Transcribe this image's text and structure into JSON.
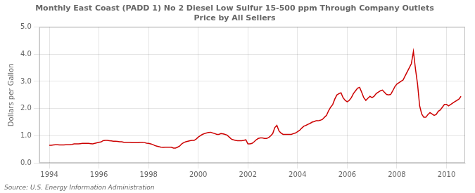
{
  "chart_data": {
    "type": "line",
    "title": "Monthly East Coast (PADD 1) No 2 Diesel Low Sulfur 15-500 ppm Through Company Outlets\nPrice by All Sellers",
    "ylabel": "Dollars per Gallon",
    "annotations": [
      "Source: U.S. Energy Information Administration"
    ],
    "color": "#cc0000",
    "grid": true,
    "xlim": [
      1993.6,
      2010.75
    ],
    "ylim": [
      0.0,
      5.0
    ],
    "xticks": [
      1994,
      1996,
      1998,
      2000,
      2002,
      2004,
      2006,
      2008,
      2010
    ],
    "yticks": [
      {
        "value": 0.0,
        "label": "0.0"
      },
      {
        "value": 1.0,
        "label": "1.0"
      },
      {
        "value": 2.0,
        "label": "2.0"
      },
      {
        "value": 3.0,
        "label": "3.0"
      },
      {
        "value": 4.0,
        "label": "4.0"
      },
      {
        "value": 5.0,
        "label": "5.0"
      }
    ],
    "x": [
      1994.0,
      1994.083,
      1994.167,
      1994.25,
      1994.333,
      1994.417,
      1994.5,
      1994.583,
      1994.667,
      1994.75,
      1994.833,
      1994.917,
      1995.0,
      1995.083,
      1995.167,
      1995.25,
      1995.333,
      1995.417,
      1995.5,
      1995.583,
      1995.667,
      1995.75,
      1995.833,
      1995.917,
      1996.0,
      1996.083,
      1996.167,
      1996.25,
      1996.333,
      1996.417,
      1996.5,
      1996.583,
      1996.667,
      1996.75,
      1996.833,
      1996.917,
      1997.0,
      1997.083,
      1997.167,
      1997.25,
      1997.333,
      1997.417,
      1997.5,
      1997.583,
      1997.667,
      1997.75,
      1997.833,
      1997.917,
      1998.0,
      1998.083,
      1998.167,
      1998.25,
      1998.333,
      1998.417,
      1998.5,
      1998.583,
      1998.667,
      1998.75,
      1998.833,
      1998.917,
      1999.0,
      1999.083,
      1999.167,
      1999.25,
      1999.333,
      1999.417,
      1999.5,
      1999.583,
      1999.667,
      1999.75,
      1999.833,
      1999.917,
      2000.0,
      2000.083,
      2000.167,
      2000.25,
      2000.333,
      2000.417,
      2000.5,
      2000.583,
      2000.667,
      2000.75,
      2000.833,
      2000.917,
      2001.0,
      2001.083,
      2001.167,
      2001.25,
      2001.333,
      2001.417,
      2001.5,
      2001.583,
      2001.667,
      2001.75,
      2001.833,
      2001.917,
      2002.0,
      2002.083,
      2002.167,
      2002.25,
      2002.333,
      2002.417,
      2002.5,
      2002.583,
      2002.667,
      2002.75,
      2002.833,
      2002.917,
      2003.0,
      2003.083,
      2003.167,
      2003.25,
      2003.333,
      2003.417,
      2003.5,
      2003.583,
      2003.667,
      2003.75,
      2003.833,
      2003.917,
      2004.0,
      2004.083,
      2004.167,
      2004.25,
      2004.333,
      2004.417,
      2004.5,
      2004.583,
      2004.667,
      2004.75,
      2004.833,
      2004.917,
      2005.0,
      2005.083,
      2005.167,
      2005.25,
      2005.333,
      2005.417,
      2005.5,
      2005.583,
      2005.667,
      2005.75,
      2005.833,
      2005.917,
      2006.0,
      2006.083,
      2006.167,
      2006.25,
      2006.333,
      2006.417,
      2006.5,
      2006.583,
      2006.667,
      2006.75,
      2006.833,
      2006.917,
      2007.0,
      2007.083,
      2007.167,
      2007.25,
      2007.333,
      2007.417,
      2007.5,
      2007.583,
      2007.667,
      2007.75,
      2007.833,
      2007.917,
      2008.0,
      2008.083,
      2008.167,
      2008.25,
      2008.333,
      2008.417,
      2008.5,
      2008.583,
      2008.667,
      2008.75,
      2008.833,
      2008.917,
      2009.0,
      2009.083,
      2009.167,
      2009.25,
      2009.333,
      2009.417,
      2009.5,
      2009.583,
      2009.667,
      2009.75,
      2009.833,
      2009.917,
      2010.0,
      2010.083,
      2010.167,
      2010.25,
      2010.333,
      2010.417,
      2010.5,
      2010.583
    ],
    "values": [
      0.65,
      0.65,
      0.66,
      0.67,
      0.67,
      0.66,
      0.66,
      0.66,
      0.67,
      0.67,
      0.67,
      0.68,
      0.7,
      0.7,
      0.7,
      0.71,
      0.72,
      0.72,
      0.72,
      0.72,
      0.71,
      0.7,
      0.72,
      0.74,
      0.76,
      0.77,
      0.82,
      0.83,
      0.83,
      0.82,
      0.81,
      0.8,
      0.8,
      0.79,
      0.78,
      0.78,
      0.76,
      0.76,
      0.76,
      0.76,
      0.75,
      0.75,
      0.75,
      0.75,
      0.76,
      0.76,
      0.75,
      0.73,
      0.72,
      0.7,
      0.68,
      0.64,
      0.62,
      0.6,
      0.58,
      0.57,
      0.58,
      0.58,
      0.58,
      0.58,
      0.55,
      0.55,
      0.58,
      0.62,
      0.7,
      0.75,
      0.78,
      0.8,
      0.82,
      0.83,
      0.83,
      0.88,
      0.95,
      1.0,
      1.05,
      1.08,
      1.1,
      1.12,
      1.13,
      1.1,
      1.08,
      1.05,
      1.05,
      1.08,
      1.07,
      1.05,
      1.02,
      0.95,
      0.88,
      0.85,
      0.83,
      0.82,
      0.82,
      0.82,
      0.83,
      0.85,
      0.7,
      0.7,
      0.72,
      0.78,
      0.85,
      0.9,
      0.92,
      0.92,
      0.9,
      0.9,
      0.93,
      1.0,
      1.08,
      1.3,
      1.38,
      1.18,
      1.1,
      1.05,
      1.05,
      1.05,
      1.05,
      1.05,
      1.08,
      1.1,
      1.15,
      1.2,
      1.28,
      1.35,
      1.38,
      1.42,
      1.45,
      1.5,
      1.52,
      1.55,
      1.55,
      1.57,
      1.6,
      1.68,
      1.75,
      1.92,
      2.05,
      2.15,
      2.35,
      2.5,
      2.55,
      2.58,
      2.4,
      2.3,
      2.25,
      2.3,
      2.4,
      2.55,
      2.65,
      2.75,
      2.78,
      2.6,
      2.4,
      2.3,
      2.38,
      2.45,
      2.4,
      2.45,
      2.55,
      2.6,
      2.65,
      2.68,
      2.6,
      2.52,
      2.5,
      2.52,
      2.65,
      2.8,
      2.9,
      2.95,
      3.0,
      3.05,
      3.2,
      3.35,
      3.5,
      3.65,
      4.1,
      3.45,
      2.9,
      2.1,
      1.8,
      1.68,
      1.68,
      1.78,
      1.85,
      1.8,
      1.75,
      1.78,
      1.9,
      1.95,
      2.05,
      2.15,
      2.15,
      2.1,
      2.15,
      2.2,
      2.25,
      2.3,
      2.35,
      2.45
    ]
  }
}
